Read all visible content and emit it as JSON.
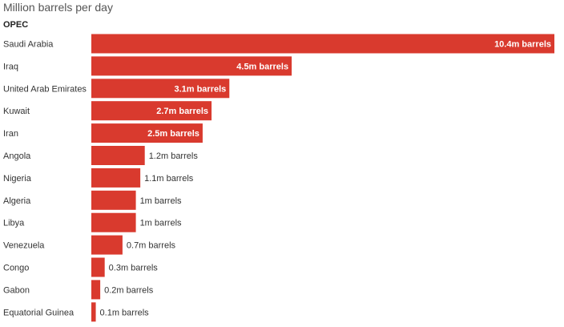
{
  "header": {
    "subtitle": "Million barrels per day",
    "group_label": "OPEC"
  },
  "colors": {
    "bar": "#d93a2e"
  },
  "chart_data": {
    "type": "bar",
    "orientation": "horizontal",
    "title": "",
    "subtitle": "Million barrels per day",
    "group": "OPEC",
    "categories": [
      "Saudi Arabia",
      "Iraq",
      "United Arab Emirates",
      "Kuwait",
      "Iran",
      "Angola",
      "Nigeria",
      "Algeria",
      "Libya",
      "Venezuela",
      "Congo",
      "Gabon",
      "Equatorial Guinea"
    ],
    "values": [
      10.4,
      4.5,
      3.1,
      2.7,
      2.5,
      1.2,
      1.1,
      1.0,
      1.0,
      0.7,
      0.3,
      0.2,
      0.1
    ],
    "labels": [
      "10.4m barrels",
      "4.5m barrels",
      "3.1m barrels",
      "2.7m barrels",
      "2.5m barrels",
      "1.2m barrels",
      "1.1m barrels",
      "1m barrels",
      "1m barrels",
      "0.7m barrels",
      "0.3m barrels",
      "0.2m barrels",
      "0.1m barrels"
    ],
    "xlim": [
      0,
      10.4
    ],
    "grid": false,
    "legend": "none"
  }
}
